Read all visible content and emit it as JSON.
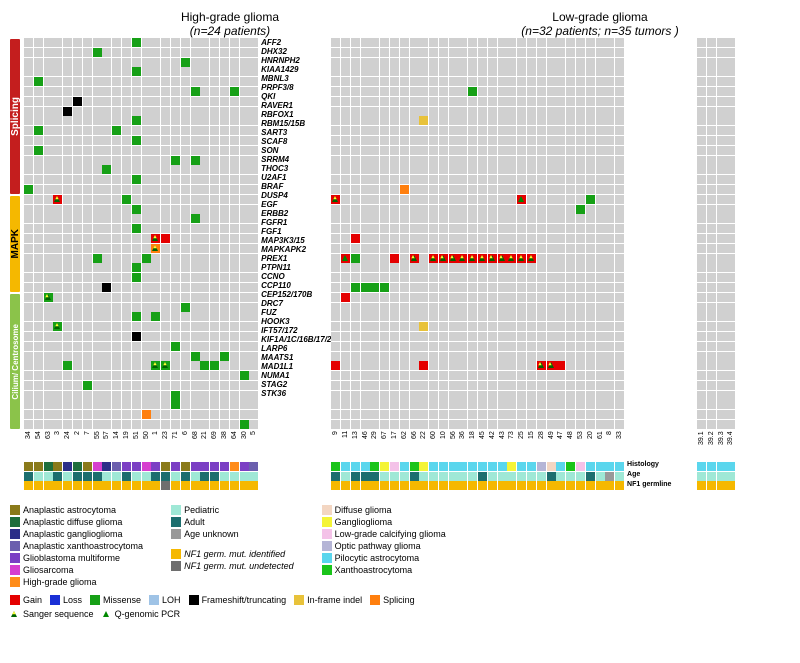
{
  "titles": {
    "hg": "High-grade glioma",
    "hg_sub": "(n=24 patients)",
    "lg": "Low-grade glioma",
    "lg_sub": "(n=32 patients; n=35 tumors )"
  },
  "groupbars": [
    {
      "label": "Splicing",
      "color": "#c41e1e",
      "text": "#ffffff",
      "rows": 16
    },
    {
      "label": "MAPK",
      "color": "#f5b800",
      "text": "#000000",
      "rows": 10
    },
    {
      "label": "Cilium/\nCentrosome",
      "color": "#8bc34a",
      "text": "#ffffff",
      "rows": 14,
      "fs": 8
    }
  ],
  "cell_h": 9.8,
  "genes": [
    "AFF2",
    "DHX32",
    "HNRNPH2",
    "KIAA1429",
    "MBNL3",
    "PRPF3/8",
    "QKI",
    "RAVER1",
    "RBFOX1",
    "RBM15/15B",
    "SART3",
    "SCAF8",
    "SON",
    "SRRM4",
    "THOC3",
    "U2AF1",
    "BRAF",
    "DUSP4",
    "EGF",
    "ERBB2",
    "FGFR1",
    "FGF1",
    "MAP3K3/15",
    "MAPKAPK2",
    "PREX1",
    "PTPN11",
    "CCNO",
    "CCP110",
    "CEP152/170B",
    "DRC7",
    "FUZ",
    "HOOK3",
    "IFT57/172",
    "KIF1A/1C/16B/17/25/27",
    "LARP6",
    "MAATS1",
    "MAD1L1",
    "NUMA1",
    "STAG2",
    "STK36"
  ],
  "hg_cols": [
    "34",
    "54",
    "63",
    "3",
    "24",
    "2",
    "7",
    "55",
    "57",
    "14",
    "19",
    "51",
    "50",
    "1",
    "23",
    "71",
    "6",
    "68",
    "21",
    "69",
    "38",
    "64",
    "30",
    "5"
  ],
  "lg_cols_a": [
    "9",
    "11",
    "13",
    "46",
    "29",
    "67",
    "17",
    "62",
    "66",
    "22",
    "60",
    "10",
    "56",
    "36",
    "18",
    "45",
    "42",
    "43",
    "73",
    "25",
    "15",
    "28",
    "49",
    "47",
    "48",
    "53",
    "20",
    "61",
    "8",
    "33"
  ],
  "lg_cols_b": [
    "39.1",
    "39.2",
    "39.3",
    "39.4"
  ],
  "colors": {
    "bg": "#d0d0d0",
    "Gain": "#e40000",
    "Loss": "#1a2fd6",
    "Missense": "#16a016",
    "LOH": "#9fc3e6",
    "Frameshift": "#000000",
    "Inframe": "#e8c23a",
    "Splicing": "#ff7f0e",
    "AnapAstro": "#8a7a1a",
    "AnapDiffuse": "#1e6e3c",
    "AnapGanglio": "#2b2e88",
    "AnapXantho": "#6b5fae",
    "GBM": "#7b3fc4",
    "Gliosarcoma": "#d63ecf",
    "HGglioma": "#ff8c1a",
    "DiffuseGlioma": "#f3d6c2",
    "Ganglio": "#f4f437",
    "LowGradeCalc": "#f4c2e8",
    "OpticPath": "#b5b5d6",
    "Pilocytic": "#5ad6ed",
    "Xantho": "#1ac41a",
    "Pediatric": "#9fe8d6",
    "Adult": "#1c6e6e",
    "AgeUnknown": "#999999",
    "NF1id": "#f5b800",
    "NF1undet": "#6e6e6e"
  },
  "annolabels": [
    "Histology",
    "Age",
    "NF1 germline"
  ],
  "hg_marks": [
    [
      0,
      11,
      "Missense"
    ],
    [
      1,
      7,
      "Missense"
    ],
    [
      2,
      16,
      "Missense"
    ],
    [
      3,
      11,
      "Missense"
    ],
    [
      4,
      1,
      "Missense"
    ],
    [
      5,
      17,
      "Missense"
    ],
    [
      5,
      21,
      "Missense"
    ],
    [
      6,
      5,
      "Frameshift"
    ],
    [
      7,
      4,
      "Frameshift"
    ],
    [
      8,
      11,
      "Missense"
    ],
    [
      9,
      1,
      "Missense"
    ],
    [
      9,
      9,
      "Missense"
    ],
    [
      10,
      11,
      "Missense"
    ],
    [
      11,
      1,
      "Missense"
    ],
    [
      12,
      15,
      "Missense"
    ],
    [
      12,
      17,
      "Missense"
    ],
    [
      13,
      8,
      "Missense"
    ],
    [
      14,
      11,
      "Missense"
    ],
    [
      15,
      0,
      "Missense"
    ],
    [
      16,
      3,
      "Gain",
      "sanger"
    ],
    [
      16,
      10,
      "Missense"
    ],
    [
      17,
      11,
      "Missense"
    ],
    [
      18,
      17,
      "Missense"
    ],
    [
      19,
      11,
      "Missense"
    ],
    [
      20,
      13,
      "Gain",
      "sanger"
    ],
    [
      20,
      14,
      "Gain"
    ],
    [
      21,
      13,
      "Splicing",
      "sanger"
    ],
    [
      22,
      7,
      "Missense"
    ],
    [
      22,
      12,
      "Missense"
    ],
    [
      23,
      11,
      "Missense"
    ],
    [
      24,
      11,
      "Missense"
    ],
    [
      25,
      8,
      "Frameshift"
    ],
    [
      26,
      2,
      "Missense",
      "sanger"
    ],
    [
      27,
      16,
      "Missense"
    ],
    [
      28,
      11,
      "Missense"
    ],
    [
      28,
      13,
      "Missense"
    ],
    [
      29,
      3,
      "Missense",
      "sanger"
    ],
    [
      30,
      11,
      "Frameshift"
    ],
    [
      31,
      15,
      "Missense"
    ],
    [
      32,
      17,
      "Missense"
    ],
    [
      32,
      20,
      "Missense"
    ],
    [
      33,
      4,
      "Missense"
    ],
    [
      33,
      13,
      "Missense",
      "sanger"
    ],
    [
      33,
      14,
      "Missense",
      "sanger"
    ],
    [
      33,
      18,
      "Missense"
    ],
    [
      33,
      19,
      "Missense"
    ],
    [
      34,
      22,
      "Missense"
    ],
    [
      35,
      6,
      "Missense"
    ],
    [
      36,
      15,
      "Missense"
    ],
    [
      37,
      15,
      "Missense"
    ],
    [
      38,
      12,
      "Splicing"
    ],
    [
      39,
      22,
      "Missense"
    ]
  ],
  "lg_a_marks": [
    [
      5,
      14,
      "Missense"
    ],
    [
      8,
      9,
      "Inframe"
    ],
    [
      15,
      7,
      "Splicing"
    ],
    [
      16,
      0,
      "Gain",
      "sanger"
    ],
    [
      16,
      19,
      "Gain",
      "qpcr"
    ],
    [
      16,
      26,
      "Missense"
    ],
    [
      17,
      25,
      "Missense"
    ],
    [
      20,
      2,
      "Gain"
    ],
    [
      22,
      1,
      "Gain",
      "qpcr"
    ],
    [
      22,
      2,
      "Missense"
    ],
    [
      22,
      6,
      "Gain"
    ],
    [
      22,
      8,
      "Gain",
      "sanger"
    ],
    [
      22,
      10,
      "Gain",
      "sanger"
    ],
    [
      22,
      11,
      "Gain",
      "sanger"
    ],
    [
      22,
      12,
      "Gain",
      "sanger"
    ],
    [
      22,
      13,
      "Gain",
      "sanger"
    ],
    [
      22,
      14,
      "Gain",
      "sanger"
    ],
    [
      22,
      15,
      "Gain",
      "sanger"
    ],
    [
      22,
      16,
      "Gain",
      "sanger"
    ],
    [
      22,
      17,
      "Gain",
      "sanger"
    ],
    [
      22,
      18,
      "Gain",
      "sanger"
    ],
    [
      22,
      19,
      "Gain",
      "sanger"
    ],
    [
      22,
      20,
      "Gain",
      "sanger"
    ],
    [
      25,
      2,
      "Missense"
    ],
    [
      25,
      3,
      "Missense"
    ],
    [
      25,
      4,
      "Missense"
    ],
    [
      25,
      5,
      "Missense"
    ],
    [
      26,
      1,
      "Gain"
    ],
    [
      29,
      9,
      "Inframe"
    ],
    [
      33,
      0,
      "Gain"
    ],
    [
      33,
      9,
      "Gain"
    ],
    [
      33,
      21,
      "Gain",
      "sanger"
    ],
    [
      33,
      22,
      "Gain",
      "sanger"
    ],
    [
      33,
      23,
      "Gain"
    ]
  ],
  "lg_b_marks": [],
  "hg_anno": {
    "hist": [
      "AnapAstro",
      "AnapAstro",
      "AnapDiffuse",
      "AnapAstro",
      "AnapGanglio",
      "AnapDiffuse",
      "AnapAstro",
      "Gliosarcoma",
      "AnapGanglio",
      "AnapXantho",
      "GBM",
      "GBM",
      "Gliosarcoma",
      "GBM",
      "AnapAstro",
      "GBM",
      "AnapAstro",
      "GBM",
      "GBM",
      "GBM",
      "GBM",
      "HGglioma",
      "GBM",
      "AnapXantho"
    ],
    "age": [
      "Adult",
      "Pediatric",
      "Pediatric",
      "Adult",
      "Pediatric",
      "Adult",
      "Adult",
      "Adult",
      "Pediatric",
      "Pediatric",
      "Adult",
      "Pediatric",
      "Pediatric",
      "Adult",
      "Adult",
      "Pediatric",
      "Adult",
      "Pediatric",
      "Adult",
      "Adult",
      "Pediatric",
      "Pediatric",
      "Pediatric",
      "Pediatric"
    ],
    "nf1": [
      "NF1id",
      "NF1id",
      "NF1id",
      "NF1id",
      "NF1id",
      "NF1id",
      "NF1id",
      "NF1id",
      "NF1id",
      "NF1id",
      "NF1id",
      "NF1id",
      "NF1id",
      "NF1id",
      "NF1undet",
      "NF1id",
      "NF1id",
      "NF1id",
      "NF1id",
      "NF1id",
      "NF1id",
      "NF1id",
      "NF1id",
      "NF1id"
    ]
  },
  "lg_a_anno": {
    "hist": [
      "Xantho",
      "Pilocytic",
      "Pilocytic",
      "Pilocytic",
      "Xantho",
      "Ganglio",
      "LowGradeCalc",
      "Pilocytic",
      "Xantho",
      "Ganglio",
      "Pilocytic",
      "Pilocytic",
      "Pilocytic",
      "Pilocytic",
      "Pilocytic",
      "Pilocytic",
      "Pilocytic",
      "Pilocytic",
      "Ganglio",
      "Pilocytic",
      "Pilocytic",
      "OpticPath",
      "DiffuseGlioma",
      "Pilocytic",
      "Xantho",
      "LowGradeCalc",
      "Pilocytic",
      "Pilocytic",
      "Pilocytic",
      "Pilocytic"
    ],
    "age": [
      "Adult",
      "Pediatric",
      "Adult",
      "Adult",
      "Adult",
      "Pediatric",
      "Pediatric",
      "Pediatric",
      "Adult",
      "Pediatric",
      "Pediatric",
      "Pediatric",
      "Pediatric",
      "Pediatric",
      "Pediatric",
      "Adult",
      "Pediatric",
      "Pediatric",
      "Pediatric",
      "Pediatric",
      "Pediatric",
      "Pediatric",
      "Adult",
      "Pediatric",
      "Pediatric",
      "Pediatric",
      "Adult",
      "Pediatric",
      "AgeUnknown",
      "Pediatric"
    ],
    "nf1": [
      "NF1id",
      "NF1id",
      "NF1id",
      "NF1id",
      "NF1id",
      "NF1id",
      "NF1id",
      "NF1id",
      "NF1id",
      "NF1id",
      "NF1id",
      "NF1id",
      "NF1id",
      "NF1id",
      "NF1id",
      "NF1id",
      "NF1id",
      "NF1id",
      "NF1id",
      "NF1id",
      "NF1id",
      "NF1id",
      "NF1id",
      "NF1id",
      "NF1id",
      "NF1id",
      "NF1id",
      "NF1id",
      "NF1id",
      "NF1id"
    ]
  },
  "lg_b_anno": {
    "hist": [
      "Pilocytic",
      "Pilocytic",
      "Pilocytic",
      "Pilocytic"
    ],
    "age": [
      "Pediatric",
      "Pediatric",
      "Pediatric",
      "Pediatric"
    ],
    "nf1": [
      "NF1id",
      "NF1id",
      "NF1id",
      "NF1id"
    ]
  },
  "legend_hist": [
    [
      "Anaplastic astrocytoma",
      "AnapAstro"
    ],
    [
      "Anaplastic diffuse glioma",
      "AnapDiffuse"
    ],
    [
      "Anaplastic ganglioglioma",
      "AnapGanglio"
    ],
    [
      "Anaplastic xanthoastrocytoma",
      "AnapXantho"
    ],
    [
      "Glioblastoma multiforme",
      "GBM"
    ],
    [
      "Gliosarcoma",
      "Gliosarcoma"
    ],
    [
      "High-grade glioma",
      "HGglioma"
    ]
  ],
  "legend_age": [
    [
      "Pediatric",
      "Pediatric"
    ],
    [
      "Adult",
      "Adult"
    ],
    [
      "Age unknown",
      "AgeUnknown"
    ]
  ],
  "legend_nf1": [
    [
      "NF1 germ. mut. identified",
      "NF1id"
    ],
    [
      "NF1 germ. mut. undetected",
      "NF1undet"
    ]
  ],
  "legend_hist2": [
    [
      "Diffuse glioma",
      "DiffuseGlioma"
    ],
    [
      "Ganglioglioma",
      "Ganglio"
    ],
    [
      "Low-grade calcifying glioma",
      "LowGradeCalc"
    ],
    [
      "Optic pathway glioma",
      "OpticPath"
    ],
    [
      "Pilocytic astrocytoma",
      "Pilocytic"
    ],
    [
      "Xanthoastrocytoma",
      "Xantho"
    ]
  ],
  "legend_mut": [
    [
      "Gain",
      "Gain"
    ],
    [
      "Loss",
      "Loss"
    ],
    [
      "Missense",
      "Missense"
    ],
    [
      "LOH",
      "LOH"
    ],
    [
      "Frameshift/truncating",
      "Frameshift"
    ],
    [
      "In-frame indel",
      "Inframe"
    ],
    [
      "Splicing",
      "Splicing"
    ]
  ],
  "legend_tri": [
    [
      "Sanger sequence",
      "sanger"
    ],
    [
      "Q-genomic PCR",
      "qpcr"
    ]
  ]
}
